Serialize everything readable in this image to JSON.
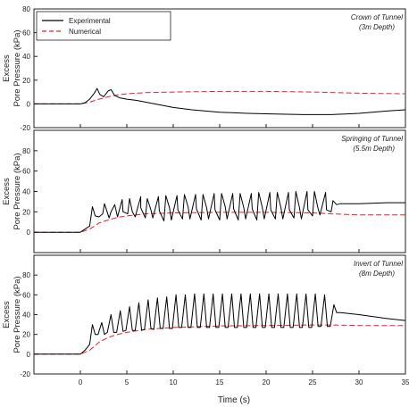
{
  "chart_data": {
    "type": "line",
    "xlabel": "Time (s)",
    "xlim": [
      -5,
      35
    ],
    "x_ticks": [
      0,
      5,
      10,
      15,
      20,
      25,
      30,
      35
    ],
    "x_tick_labels": [
      "0",
      "5",
      "10",
      "15",
      "20",
      "25",
      "30",
      "35"
    ],
    "legend": {
      "placement": "top-left",
      "entries": [
        {
          "name": "Experimental",
          "color": "#000000",
          "style": "solid"
        },
        {
          "name": "Numerical",
          "color": "#e8202a",
          "style": "dashed"
        }
      ]
    },
    "panels": [
      {
        "annotation_line1": "Crown of Tunnel",
        "annotation_line2": "(3m Depth)",
        "ylabel_line1": "Excess",
        "ylabel_line2": "Pore Pressure (kPa)",
        "ylim": [
          -20,
          80
        ],
        "y_ticks": [
          -20,
          0,
          20,
          40,
          60,
          80
        ],
        "y_tick_labels": [
          "-20",
          "0",
          "20",
          "40",
          "60",
          "80"
        ],
        "series": [
          {
            "name": "Experimental",
            "color": "#000000",
            "x": [
              -5,
              0,
              0.5,
              1,
              1.5,
              1.8,
              2.1,
              2.5,
              3,
              3.3,
              3.7,
              4.3,
              5,
              6,
              7,
              8,
              10,
              12,
              15,
              18,
              21,
              24,
              27,
              30,
              33,
              35
            ],
            "y": [
              0,
              0,
              1,
              4,
              9,
              13,
              8,
              6,
              11,
              12,
              7,
              5,
              4,
              3,
              1.5,
              0,
              -3,
              -5,
              -7,
              -8,
              -8.5,
              -9,
              -9,
              -8,
              -6,
              -5
            ]
          },
          {
            "name": "Numerical",
            "color": "#e8202a",
            "x": [
              -5,
              0,
              1,
              2,
              3,
              4,
              5,
              7,
              10,
              15,
              20,
              25,
              30,
              35
            ],
            "y": [
              0,
              0,
              1.5,
              4,
              6,
              7.5,
              8.5,
              9.5,
              10,
              10.5,
              10.5,
              10,
              9,
              8.5
            ]
          }
        ]
      },
      {
        "annotation_line1": "Springing of Tunnel",
        "annotation_line2": "(5.5m Depth)",
        "ylabel_line1": "Excess",
        "ylabel_line2": "Pore Pressure (kPa)",
        "ylim": [
          -20,
          100
        ],
        "y_ticks": [
          0,
          20,
          40,
          60,
          80
        ],
        "y_tick_labels": [
          "0",
          "20",
          "40",
          "60",
          "80"
        ],
        "series": [
          {
            "name": "Experimental",
            "color": "#000000",
            "x": [
              -5,
              0,
              0.5,
              1,
              1.3,
              1.6,
              2.0,
              2.4,
              2.6,
              3.1,
              3.3,
              3.7,
              4.0,
              4.5,
              4.6,
              5.1,
              5.3,
              5.6,
              5.9,
              6.5,
              6.5,
              7.0,
              7.2,
              7.6,
              7.8,
              8.4,
              8.5,
              9.0,
              9.2,
              9.6,
              9.8,
              10.4,
              10.5,
              11.0,
              11.2,
              11.6,
              11.8,
              12.4,
              12.5,
              13.0,
              13.2,
              13.6,
              13.8,
              14.4,
              14.5,
              15.0,
              15.2,
              15.6,
              15.8,
              16.4,
              16.5,
              17.0,
              17.2,
              17.6,
              17.8,
              18.4,
              18.5,
              19.0,
              19.2,
              19.6,
              19.8,
              20.4,
              20.5,
              21.0,
              21.2,
              21.6,
              21.8,
              22.4,
              22.5,
              23.0,
              23.2,
              23.6,
              23.8,
              24.4,
              24.5,
              25.0,
              25.2,
              25.6,
              25.8,
              26.4,
              26.5,
              27.0,
              27.2,
              27.6,
              28,
              30,
              33,
              35
            ],
            "y": [
              0,
              0,
              3,
              6,
              25,
              16,
              15,
              18,
              28,
              14,
              20,
              27,
              15,
              32,
              20,
              18,
              33,
              20,
              15,
              35,
              24,
              14,
              33,
              22,
              14,
              35,
              21,
              11,
              36,
              24,
              12,
              36,
              22,
              13,
              37,
              25,
              13,
              37,
              23,
              12,
              37,
              24,
              13,
              38,
              22,
              12,
              38,
              25,
              13,
              38,
              23,
              12,
              38,
              24,
              13,
              38,
              23,
              12,
              39,
              24,
              13,
              39,
              22,
              13,
              39,
              24,
              13,
              39,
              22,
              14,
              40,
              24,
              13,
              40,
              22,
              16,
              40,
              23,
              17,
              39,
              22,
              20,
              31,
              27,
              28,
              28,
              29,
              29
            ]
          },
          {
            "name": "Numerical",
            "color": "#e8202a",
            "x": [
              -5,
              0,
              1,
              2,
              3,
              4,
              5,
              7,
              10,
              15,
              20,
              25,
              27,
              30,
              35
            ],
            "y": [
              0,
              0,
              3,
              9,
              12,
              14.5,
              16,
              18,
              19,
              19.5,
              19.5,
              19,
              18,
              17,
              17
            ]
          }
        ]
      },
      {
        "annotation_line1": "Invert of Tunnel",
        "annotation_line2": "(8m Depth)",
        "ylabel_line1": "Excess",
        "ylabel_line2": "Pore Pressure (kPa)",
        "ylim": [
          -20,
          100
        ],
        "y_ticks": [
          -20,
          0,
          20,
          40,
          60,
          80
        ],
        "y_tick_labels": [
          "-20",
          "0",
          "20",
          "40",
          "60",
          "80"
        ],
        "series": [
          {
            "name": "Experimental",
            "color": "#000000",
            "x": [
              -5,
              0,
              0.5,
              1,
              1.3,
              1.6,
              1.9,
              2.3,
              2.6,
              2.9,
              3.3,
              3.6,
              3.9,
              4.3,
              4.6,
              4.9,
              5.3,
              5.6,
              5.9,
              6.3,
              6.6,
              6.9,
              7.3,
              7.6,
              7.9,
              8.3,
              8.6,
              8.9,
              9.3,
              9.6,
              9.9,
              10.3,
              10.6,
              10.9,
              11.3,
              11.6,
              11.9,
              12.3,
              12.6,
              12.9,
              13.3,
              13.6,
              13.9,
              14.3,
              14.6,
              14.9,
              15.3,
              15.6,
              15.9,
              16.3,
              16.6,
              16.9,
              17.3,
              17.6,
              17.9,
              18.3,
              18.6,
              18.9,
              19.3,
              19.6,
              19.9,
              20.3,
              20.6,
              20.9,
              21.3,
              21.6,
              21.9,
              22.3,
              22.6,
              22.9,
              23.3,
              23.6,
              23.9,
              24.3,
              24.6,
              24.9,
              25.3,
              25.6,
              25.9,
              26.3,
              26.6,
              26.9,
              27.3,
              27.6,
              28,
              30,
              33,
              35
            ],
            "y": [
              0,
              0,
              4,
              10,
              30,
              20,
              20,
              32,
              20,
              22,
              40,
              22,
              22,
              44,
              23,
              24,
              48,
              24,
              24,
              52,
              24,
              25,
              55,
              26,
              25,
              57,
              26,
              26,
              58,
              26,
              26,
              60,
              27,
              27,
              60,
              27,
              27,
              61,
              27,
              27,
              61,
              27,
              27,
              61,
              27,
              27,
              61,
              27,
              27,
              61,
              27,
              27,
              61,
              27,
              27,
              61,
              27,
              27,
              61,
              27,
              27,
              61,
              27,
              27,
              61,
              27,
              27,
              61,
              27,
              27,
              61,
              27,
              27,
              61,
              27,
              27,
              61,
              28,
              28,
              60,
              28,
              28,
              50,
              42,
              42,
              40,
              36,
              34
            ]
          },
          {
            "name": "Numerical",
            "color": "#e8202a",
            "x": [
              -5,
              0,
              1,
              2,
              3,
              4,
              5,
              7,
              10,
              15,
              20,
              25,
              27,
              30,
              35
            ],
            "y": [
              0,
              0,
              4,
              12,
              17,
              20,
              22,
              25,
              27,
              28.5,
              29,
              29.5,
              29.5,
              29,
              29
            ]
          }
        ]
      }
    ]
  }
}
